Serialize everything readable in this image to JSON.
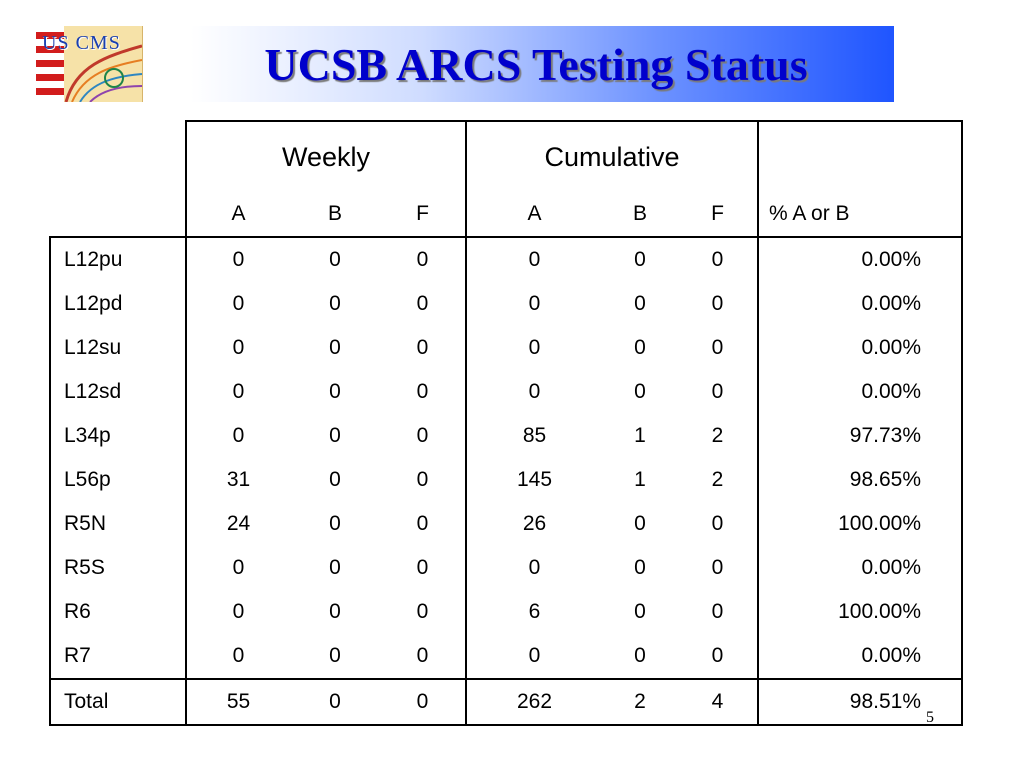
{
  "logo": {
    "text": "US CMS"
  },
  "title": "UCSB ARCS Testing Status",
  "table": {
    "group_headers": {
      "weekly": "Weekly",
      "cumulative": "Cumulative"
    },
    "sub_headers": [
      "A",
      "B",
      "F",
      "A",
      "B",
      "F",
      "% A or B"
    ],
    "rows": [
      {
        "label": "L12pu",
        "w_a": "0",
        "w_b": "0",
        "w_f": "0",
        "c_a": "0",
        "c_b": "0",
        "c_f": "0",
        "pct": "0.00%"
      },
      {
        "label": "L12pd",
        "w_a": "0",
        "w_b": "0",
        "w_f": "0",
        "c_a": "0",
        "c_b": "0",
        "c_f": "0",
        "pct": "0.00%"
      },
      {
        "label": "L12su",
        "w_a": "0",
        "w_b": "0",
        "w_f": "0",
        "c_a": "0",
        "c_b": "0",
        "c_f": "0",
        "pct": "0.00%"
      },
      {
        "label": "L12sd",
        "w_a": "0",
        "w_b": "0",
        "w_f": "0",
        "c_a": "0",
        "c_b": "0",
        "c_f": "0",
        "pct": "0.00%"
      },
      {
        "label": "L34p",
        "w_a": "0",
        "w_b": "0",
        "w_f": "0",
        "c_a": "85",
        "c_b": "1",
        "c_f": "2",
        "pct": "97.73%"
      },
      {
        "label": "L56p",
        "w_a": "31",
        "w_b": "0",
        "w_f": "0",
        "c_a": "145",
        "c_b": "1",
        "c_f": "2",
        "pct": "98.65%"
      },
      {
        "label": "R5N",
        "w_a": "24",
        "w_b": "0",
        "w_f": "0",
        "c_a": "26",
        "c_b": "0",
        "c_f": "0",
        "pct": "100.00%"
      },
      {
        "label": "R5S",
        "w_a": "0",
        "w_b": "0",
        "w_f": "0",
        "c_a": "0",
        "c_b": "0",
        "c_f": "0",
        "pct": "0.00%"
      },
      {
        "label": "R6",
        "w_a": "0",
        "w_b": "0",
        "w_f": "0",
        "c_a": "6",
        "c_b": "0",
        "c_f": "0",
        "pct": "100.00%"
      },
      {
        "label": "R7",
        "w_a": "0",
        "w_b": "0",
        "w_f": "0",
        "c_a": "0",
        "c_b": "0",
        "c_f": "0",
        "pct": "0.00%"
      }
    ],
    "total": {
      "label": "Total",
      "w_a": "55",
      "w_b": "0",
      "w_f": "0",
      "c_a": "262",
      "c_b": "2",
      "c_f": "4",
      "pct": "98.51%"
    }
  },
  "slide_number": "5",
  "colors": {
    "title": "#0000cc",
    "banner_end": "#1f55ff",
    "logo_bg": "#f6e2a8"
  }
}
